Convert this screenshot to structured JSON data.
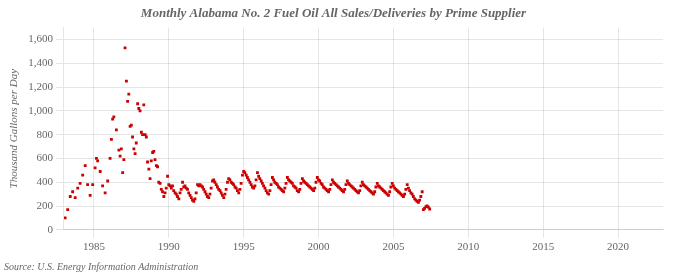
{
  "chart_data": {
    "type": "scatter",
    "title": "Monthly Alabama No. 2 Fuel Oil All Sales/Deliveries by Prime Supplier",
    "ylabel": "Thousand Gallons per Day",
    "annotations": [
      "Source: U.S. Energy Information Administration"
    ],
    "color": "#cc0000",
    "marker": "square",
    "grid": true,
    "xlim": [
      1983,
      2023
    ],
    "ylim": [
      0,
      1700
    ],
    "xticks": [
      1985,
      1990,
      1995,
      2000,
      2005,
      2010,
      2015,
      2020
    ],
    "yticks": [
      0,
      200,
      400,
      600,
      800,
      {
        "value": 1000,
        "label": "1,000"
      },
      {
        "value": 1200,
        "label": "1,200"
      },
      {
        "value": 1400,
        "label": "1,400"
      },
      {
        "value": 1600,
        "label": "1,600"
      }
    ],
    "x": [
      1983.08,
      1983.25,
      1983.42,
      1983.58,
      1983.75,
      1983.92,
      1984.08,
      1984.25,
      1984.42,
      1984.58,
      1984.75,
      1984.92,
      1985.08,
      1985.17,
      1985.25,
      1985.42,
      1985.58,
      1985.75,
      1985.92,
      1986.08,
      1986.17,
      1986.25,
      1986.33,
      1986.5,
      1986.67,
      1986.75,
      1986.83,
      1986.92,
      1987.0,
      1987.08,
      1987.17,
      1987.25,
      1987.33,
      1987.42,
      1987.5,
      1987.58,
      1987.67,
      1987.75,
      1987.83,
      1987.92,
      1988.0,
      1988.08,
      1988.17,
      1988.25,
      1988.33,
      1988.42,
      1988.5,
      1988.58,
      1988.67,
      1988.75,
      1988.83,
      1988.92,
      1989.0,
      1989.08,
      1989.17,
      1989.25,
      1989.33,
      1989.42,
      1989.5,
      1989.58,
      1989.67,
      1989.75,
      1989.83,
      1989.92,
      1990.0,
      1990.08,
      1990.17,
      1990.25,
      1990.33,
      1990.42,
      1990.5,
      1990.58,
      1990.67,
      1990.75,
      1990.83,
      1990.92,
      1991.0,
      1991.08,
      1991.17,
      1991.25,
      1991.33,
      1991.42,
      1991.5,
      1991.58,
      1991.67,
      1991.75,
      1991.83,
      1991.92,
      1992.0,
      1992.08,
      1992.17,
      1992.25,
      1992.33,
      1992.42,
      1992.5,
      1992.58,
      1992.67,
      1992.75,
      1992.83,
      1992.92,
      1993.0,
      1993.08,
      1993.17,
      1993.25,
      1993.33,
      1993.42,
      1993.5,
      1993.58,
      1993.67,
      1993.75,
      1993.83,
      1993.92,
      1994.0,
      1994.08,
      1994.17,
      1994.25,
      1994.33,
      1994.42,
      1994.5,
      1994.58,
      1994.67,
      1994.75,
      1994.83,
      1994.92,
      1995.0,
      1995.08,
      1995.17,
      1995.25,
      1995.33,
      1995.42,
      1995.5,
      1995.58,
      1995.67,
      1995.75,
      1995.83,
      1995.92,
      1996.0,
      1996.08,
      1996.17,
      1996.25,
      1996.33,
      1996.42,
      1996.5,
      1996.58,
      1996.67,
      1996.75,
      1996.83,
      1996.92,
      1997.0,
      1997.08,
      1997.17,
      1997.25,
      1997.33,
      1997.42,
      1997.5,
      1997.58,
      1997.67,
      1997.75,
      1997.83,
      1997.92,
      1998.0,
      1998.08,
      1998.17,
      1998.25,
      1998.33,
      1998.42,
      1998.5,
      1998.58,
      1998.67,
      1998.75,
      1998.83,
      1998.92,
      1999.0,
      1999.08,
      1999.17,
      1999.25,
      1999.33,
      1999.42,
      1999.5,
      1999.58,
      1999.67,
      1999.75,
      1999.83,
      1999.92,
      2000.0,
      2000.08,
      2000.17,
      2000.25,
      2000.33,
      2000.42,
      2000.5,
      2000.58,
      2000.67,
      2000.75,
      2000.83,
      2000.92,
      2001.0,
      2001.08,
      2001.17,
      2001.25,
      2001.33,
      2001.42,
      2001.5,
      2001.58,
      2001.67,
      2001.75,
      2001.83,
      2001.92,
      2002.0,
      2002.08,
      2002.17,
      2002.25,
      2002.33,
      2002.42,
      2002.5,
      2002.58,
      2002.67,
      2002.75,
      2002.83,
      2002.92,
      2003.0,
      2003.08,
      2003.17,
      2003.25,
      2003.33,
      2003.42,
      2003.5,
      2003.58,
      2003.67,
      2003.75,
      2003.83,
      2003.92,
      2004.0,
      2004.08,
      2004.17,
      2004.25,
      2004.33,
      2004.42,
      2004.5,
      2004.58,
      2004.67,
      2004.75,
      2004.83,
      2004.92,
      2005.0,
      2005.08,
      2005.17,
      2005.25,
      2005.33,
      2005.42,
      2005.5,
      2005.58,
      2005.67,
      2005.75,
      2005.83,
      2005.92,
      2006.0,
      2006.08,
      2006.17,
      2006.25,
      2006.33,
      2006.42,
      2006.5,
      2006.58,
      2006.67,
      2006.75,
      2006.83,
      2006.92,
      2007.0,
      2007.08,
      2007.17,
      2007.25,
      2007.33,
      2007.42
    ],
    "values": [
      100,
      170,
      280,
      320,
      270,
      350,
      390,
      460,
      540,
      380,
      290,
      380,
      520,
      600,
      580,
      490,
      370,
      310,
      410,
      600,
      760,
      930,
      950,
      840,
      670,
      620,
      680,
      480,
      590,
      1530,
      1250,
      1080,
      1140,
      870,
      880,
      780,
      680,
      640,
      730,
      1060,
      1020,
      1000,
      820,
      800,
      1050,
      800,
      780,
      570,
      510,
      430,
      580,
      650,
      660,
      590,
      540,
      530,
      400,
      390,
      340,
      320,
      280,
      310,
      350,
      450,
      380,
      370,
      350,
      370,
      330,
      310,
      300,
      280,
      260,
      310,
      340,
      400,
      360,
      370,
      350,
      340,
      310,
      290,
      270,
      250,
      240,
      260,
      310,
      380,
      370,
      380,
      370,
      360,
      340,
      320,
      300,
      280,
      270,
      300,
      350,
      410,
      420,
      400,
      380,
      360,
      340,
      330,
      310,
      290,
      270,
      300,
      340,
      400,
      430,
      420,
      400,
      390,
      380,
      360,
      350,
      330,
      310,
      340,
      390,
      460,
      490,
      480,
      460,
      440,
      420,
      400,
      380,
      360,
      350,
      370,
      420,
      480,
      450,
      430,
      410,
      390,
      370,
      350,
      330,
      310,
      300,
      330,
      380,
      440,
      420,
      400,
      390,
      380,
      360,
      350,
      340,
      330,
      320,
      350,
      390,
      440,
      420,
      410,
      400,
      390,
      370,
      360,
      350,
      330,
      320,
      340,
      390,
      430,
      410,
      400,
      390,
      380,
      370,
      360,
      350,
      340,
      330,
      350,
      400,
      440,
      420,
      410,
      390,
      380,
      360,
      350,
      340,
      330,
      320,
      340,
      380,
      420,
      400,
      390,
      380,
      370,
      360,
      350,
      340,
      330,
      320,
      340,
      380,
      410,
      390,
      380,
      370,
      360,
      350,
      340,
      330,
      320,
      310,
      330,
      370,
      400,
      380,
      370,
      360,
      350,
      340,
      330,
      320,
      310,
      300,
      320,
      360,
      390,
      370,
      360,
      350,
      340,
      330,
      320,
      310,
      300,
      290,
      320,
      360,
      390,
      370,
      350,
      340,
      330,
      320,
      310,
      300,
      290,
      280,
      300,
      340,
      380,
      350,
      330,
      310,
      300,
      280,
      260,
      250,
      240,
      230,
      250,
      280,
      320,
      170,
      180,
      195,
      200,
      190,
      175
    ]
  }
}
